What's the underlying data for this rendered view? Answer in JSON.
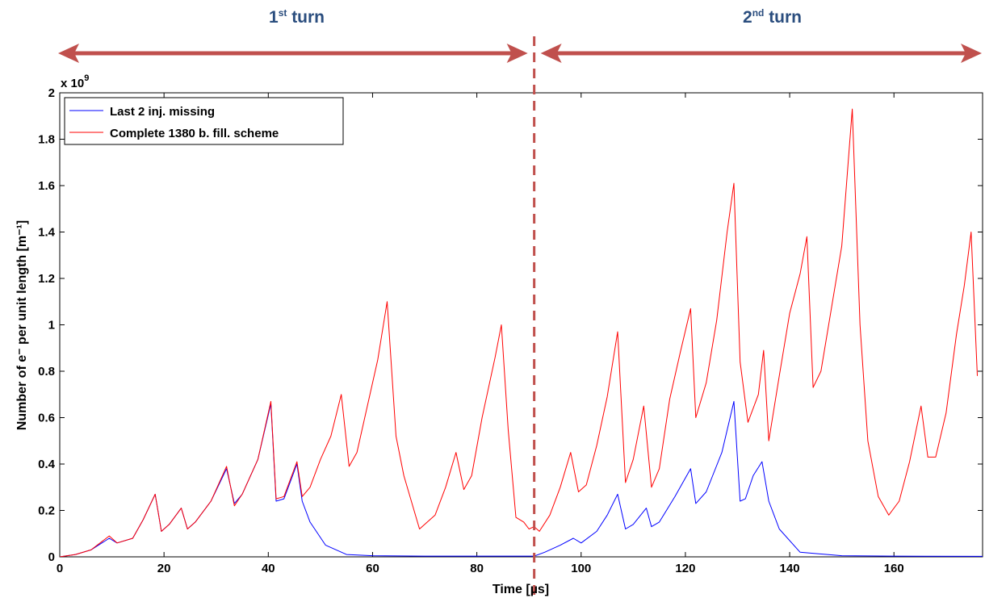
{
  "annotations": {
    "turn1": {
      "base": "1",
      "sup": "st",
      "rest": " turn"
    },
    "turn2": {
      "base": "2",
      "sup": "nd",
      "rest": " turn"
    },
    "arrow_color": "#c0504d",
    "divider_x": 91
  },
  "chart_data": {
    "type": "line",
    "title": "",
    "xlabel": "Time [µs]",
    "ylabel": "Number of e⁻ per unit length [m⁻¹]",
    "y_exponent_label": "x 10",
    "y_exponent_power": "9",
    "xlim": [
      0,
      177
    ],
    "ylim": [
      0,
      2.0
    ],
    "xticks": [
      0,
      20,
      40,
      60,
      80,
      100,
      120,
      140,
      160
    ],
    "xtick_labels": [
      "0",
      "20",
      "40",
      "60",
      "80",
      "100",
      "120",
      "140",
      "160"
    ],
    "yticks": [
      0,
      0.2,
      0.4,
      0.6,
      0.8,
      1.0,
      1.2,
      1.4,
      1.6,
      1.8,
      2.0
    ],
    "ytick_labels": [
      "0",
      "0.2",
      "0.4",
      "0.6",
      "0.8",
      "1",
      "1.2",
      "1.4",
      "1.6",
      "1.8",
      "2"
    ],
    "grid": false,
    "legend_position": "top-left",
    "series": [
      {
        "name": "Last 2 inj. missing",
        "color": "#0000ff",
        "x": [
          0,
          3,
          6,
          9.5,
          11,
          14,
          16,
          18.3,
          19.5,
          21,
          23.3,
          24.5,
          26,
          29,
          32,
          33.5,
          35,
          38,
          40.5,
          41.5,
          43,
          45.5,
          46.5,
          48,
          51,
          55,
          60,
          70,
          80,
          91,
          93,
          96,
          98.5,
          100,
          103,
          105,
          107,
          108.5,
          110,
          112.5,
          113.5,
          115,
          118,
          121,
          122,
          124,
          127,
          129.3,
          130.5,
          131.5,
          133,
          134.7,
          136,
          138,
          142,
          150,
          160,
          177
        ],
        "y": [
          0,
          0.01,
          0.03,
          0.08,
          0.06,
          0.08,
          0.16,
          0.27,
          0.11,
          0.14,
          0.21,
          0.12,
          0.15,
          0.24,
          0.38,
          0.23,
          0.27,
          0.42,
          0.66,
          0.24,
          0.25,
          0.4,
          0.24,
          0.15,
          0.05,
          0.01,
          0.005,
          0.003,
          0.003,
          0.003,
          0.02,
          0.05,
          0.08,
          0.06,
          0.11,
          0.18,
          0.27,
          0.12,
          0.14,
          0.21,
          0.13,
          0.15,
          0.26,
          0.38,
          0.23,
          0.28,
          0.45,
          0.67,
          0.24,
          0.25,
          0.35,
          0.41,
          0.24,
          0.12,
          0.02,
          0.005,
          0.003,
          0.002
        ]
      },
      {
        "name": "Complete 1380 b. fill. scheme",
        "color": "#ff0000",
        "x": [
          0,
          3,
          6,
          9.5,
          11,
          14,
          16,
          18.3,
          19.5,
          21,
          23.3,
          24.5,
          26,
          29,
          32,
          33.5,
          35,
          38,
          40.5,
          41.5,
          43,
          45.5,
          46.5,
          48,
          50,
          52,
          54,
          55.5,
          57,
          59,
          61,
          62.8,
          64.5,
          66,
          69,
          72,
          74,
          76,
          77.5,
          79,
          81,
          83.5,
          84.7,
          86,
          87.5,
          89,
          90,
          91,
          92,
          94,
          96,
          98,
          99.5,
          101,
          103,
          105,
          107,
          108.5,
          110,
          112,
          113.5,
          115,
          117,
          119,
          121,
          122,
          124,
          126,
          128,
          129.3,
          130.5,
          132,
          134,
          135,
          136,
          138,
          140,
          142,
          143.3,
          144.5,
          146,
          148,
          150,
          152,
          153.5,
          155,
          157,
          159,
          161,
          163,
          165.2,
          166.5,
          168,
          170,
          172,
          173.5,
          174.8,
          176
        ],
        "y": [
          0,
          0.01,
          0.03,
          0.09,
          0.06,
          0.08,
          0.16,
          0.27,
          0.11,
          0.14,
          0.21,
          0.12,
          0.15,
          0.24,
          0.39,
          0.22,
          0.27,
          0.42,
          0.67,
          0.25,
          0.26,
          0.41,
          0.26,
          0.3,
          0.42,
          0.52,
          0.7,
          0.39,
          0.45,
          0.65,
          0.85,
          1.1,
          0.52,
          0.35,
          0.12,
          0.18,
          0.3,
          0.45,
          0.29,
          0.35,
          0.6,
          0.86,
          1.0,
          0.55,
          0.17,
          0.15,
          0.12,
          0.13,
          0.11,
          0.18,
          0.3,
          0.45,
          0.28,
          0.31,
          0.48,
          0.69,
          0.97,
          0.32,
          0.42,
          0.65,
          0.3,
          0.38,
          0.68,
          0.88,
          1.07,
          0.6,
          0.75,
          1.02,
          1.4,
          1.61,
          0.84,
          0.58,
          0.7,
          0.89,
          0.5,
          0.78,
          1.05,
          1.22,
          1.38,
          0.73,
          0.8,
          1.07,
          1.34,
          1.93,
          1.0,
          0.5,
          0.26,
          0.18,
          0.24,
          0.41,
          0.65,
          0.43,
          0.43,
          0.62,
          0.96,
          1.17,
          1.4,
          0.78
        ]
      }
    ]
  }
}
